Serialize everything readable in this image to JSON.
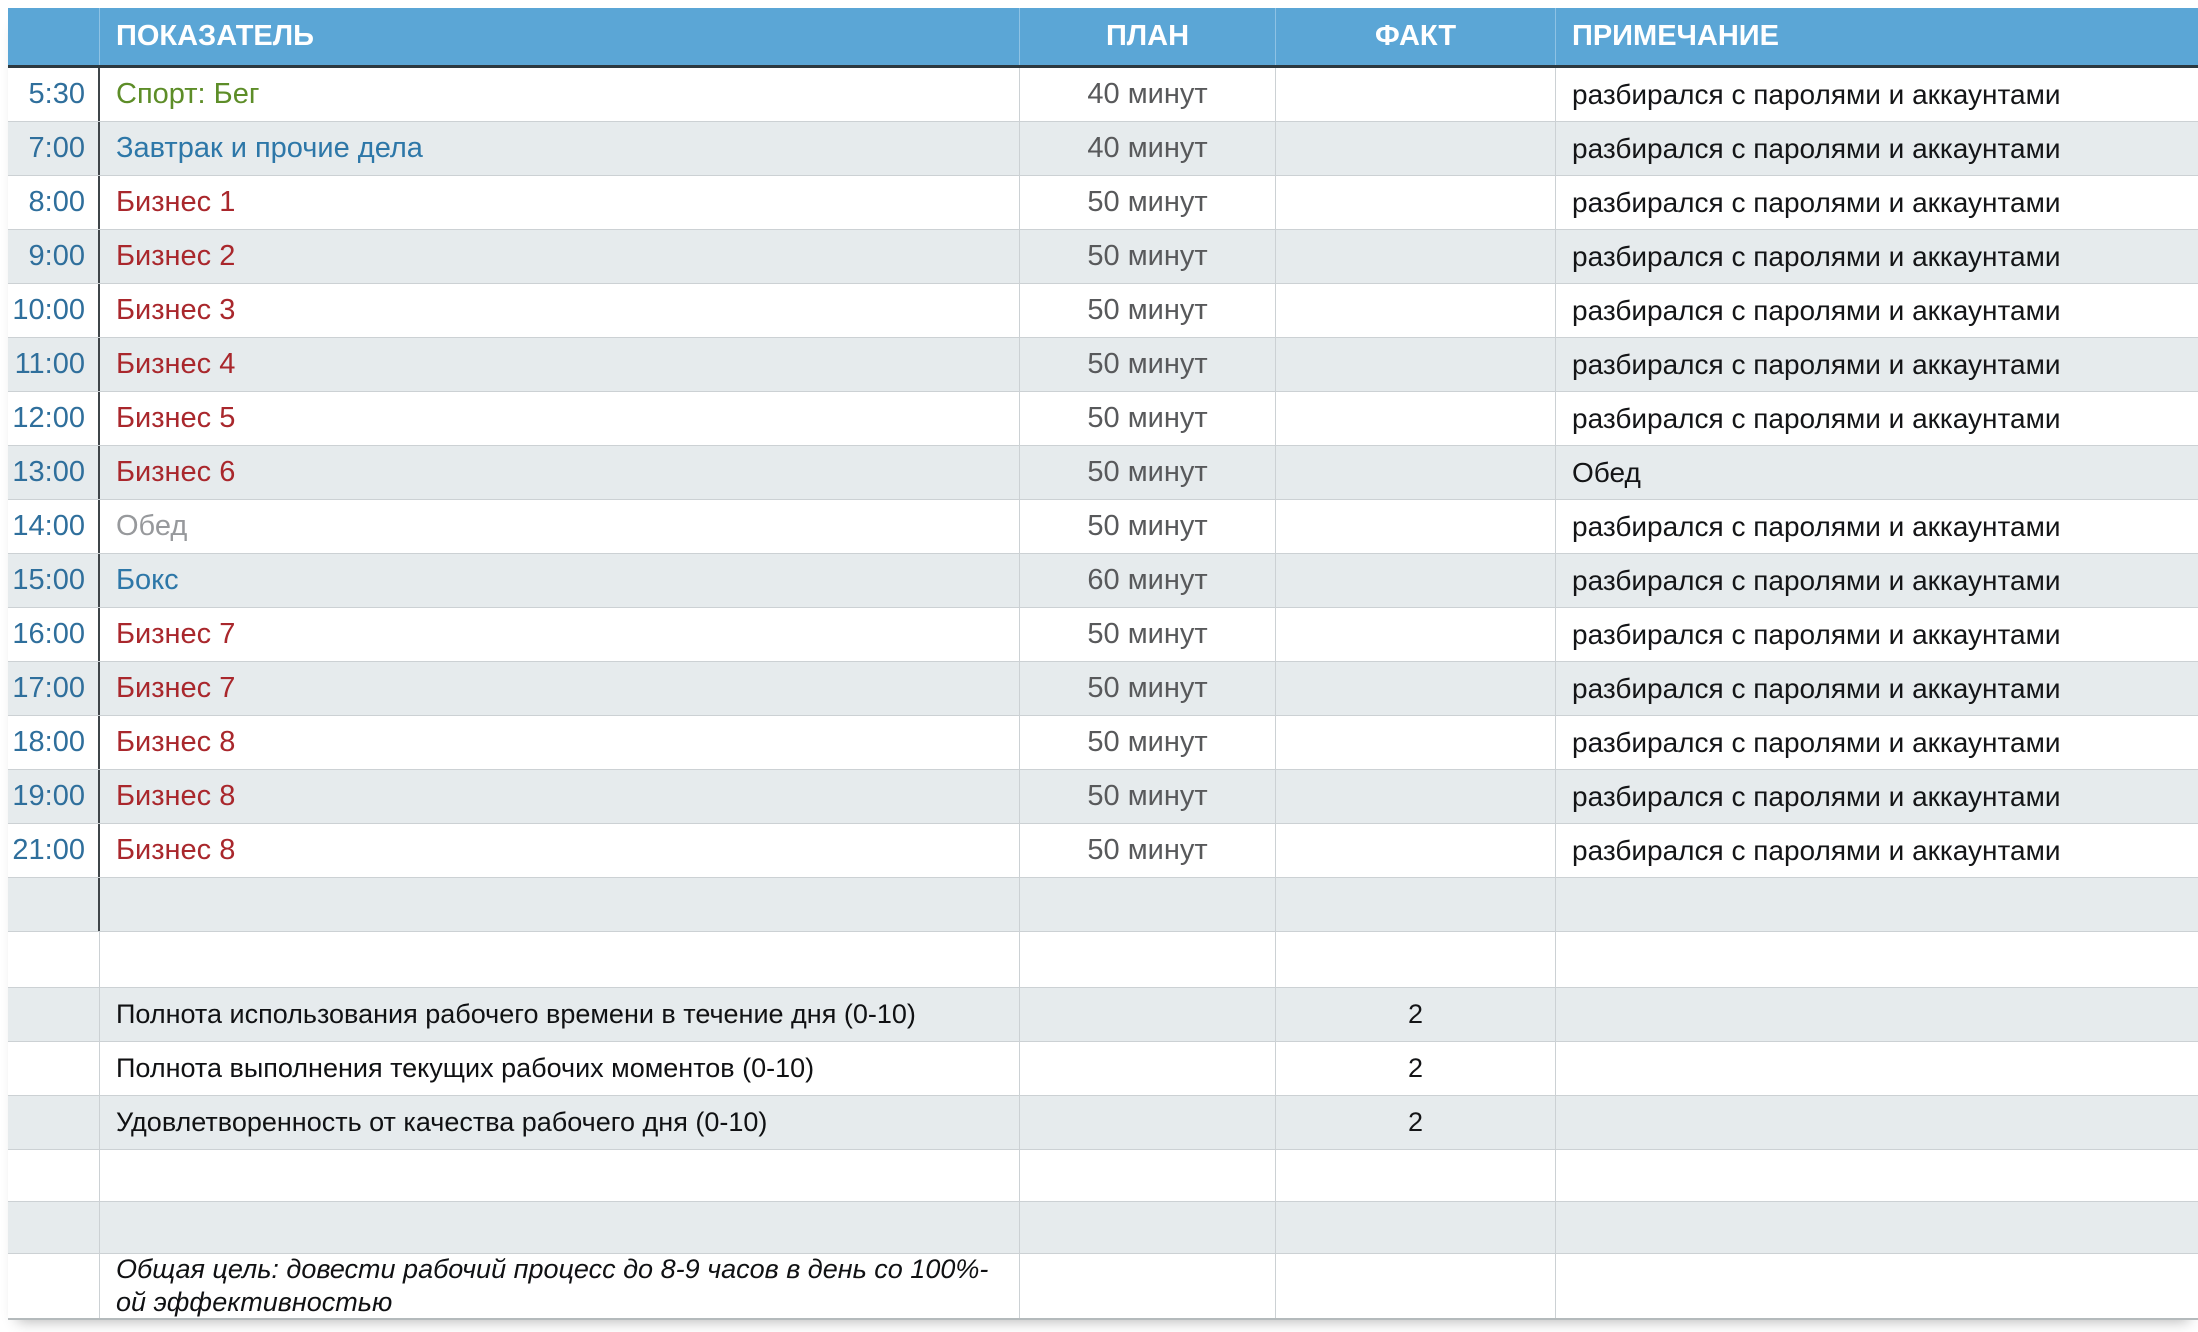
{
  "colors": {
    "header_bg": "#5ba6d6",
    "header_text": "#ffffff",
    "header_sep": "#8ec2e4",
    "header_underline": "#2c3940",
    "stripe": "#e6ebed",
    "grid_line": "#ccd1d4",
    "dark_divider": "#3f4549",
    "time_text": "#2f6f9c",
    "plan_text": "#58595b",
    "note_text": "#141517",
    "rating_text": "#101113",
    "sport_green": "#5d8d28",
    "activity_blue": "#2d77a8",
    "business_red": "#a9272c",
    "lunch_gray": "#97999c"
  },
  "table": {
    "headers": {
      "indicator": "ПОКАЗАТЕЛЬ",
      "plan": "ПЛАН",
      "fact": "ФАКТ",
      "note": "ПРИМЕЧАНИЕ"
    },
    "schedule_rows": [
      {
        "time": "5:30",
        "indicator": "Спорт: Бег",
        "color": "#5d8d28",
        "plan": "40 минут",
        "fact": "",
        "note": "разбирался с паролями и аккаунтами"
      },
      {
        "time": "7:00",
        "indicator": "Завтрак и прочие дела",
        "color": "#2d77a8",
        "plan": "40 минут",
        "fact": "",
        "note": "разбирался с паролями и аккаунтами"
      },
      {
        "time": "8:00",
        "indicator": "Бизнес 1",
        "color": "#a9272c",
        "plan": "50 минут",
        "fact": "",
        "note": "разбирался с паролями и аккаунтами"
      },
      {
        "time": "9:00",
        "indicator": "Бизнес 2",
        "color": "#a9272c",
        "plan": "50 минут",
        "fact": "",
        "note": "разбирался с паролями и аккаунтами"
      },
      {
        "time": "10:00",
        "indicator": "Бизнес 3",
        "color": "#a9272c",
        "plan": "50 минут",
        "fact": "",
        "note": "разбирался с паролями и аккаунтами"
      },
      {
        "time": "11:00",
        "indicator": "Бизнес 4",
        "color": "#a9272c",
        "plan": "50 минут",
        "fact": "",
        "note": "разбирался с паролями и аккаунтами"
      },
      {
        "time": "12:00",
        "indicator": "Бизнес 5",
        "color": "#a9272c",
        "plan": "50 минут",
        "fact": "",
        "note": "разбирался с паролями и аккаунтами"
      },
      {
        "time": "13:00",
        "indicator": "Бизнес 6",
        "color": "#a9272c",
        "plan": "50 минут",
        "fact": "",
        "note": "Обед"
      },
      {
        "time": "14:00",
        "indicator": "Обед",
        "color": "#97999c",
        "plan": "50 минут",
        "fact": "",
        "note": "разбирался с паролями и аккаунтами"
      },
      {
        "time": "15:00",
        "indicator": "Бокс",
        "color": "#2d77a8",
        "plan": "60 минут",
        "fact": "",
        "note": "разбирался с паролями и аккаунтами"
      },
      {
        "time": "16:00",
        "indicator": "Бизнес 7",
        "color": "#a9272c",
        "plan": "50 минут",
        "fact": "",
        "note": "разбирался с паролями и аккаунтами"
      },
      {
        "time": "17:00",
        "indicator": "Бизнес 7",
        "color": "#a9272c",
        "plan": "50 минут",
        "fact": "",
        "note": "разбирался с паролями и аккаунтами"
      },
      {
        "time": "18:00",
        "indicator": "Бизнес 8",
        "color": "#a9272c",
        "plan": "50 минут",
        "fact": "",
        "note": "разбирался с паролями и аккаунтами"
      },
      {
        "time": "19:00",
        "indicator": "Бизнес 8",
        "color": "#a9272c",
        "plan": "50 минут",
        "fact": "",
        "note": "разбирался с паролями и аккаунтами"
      },
      {
        "time": "21:00",
        "indicator": "Бизнес 8",
        "color": "#a9272c",
        "plan": "50 минут",
        "fact": "",
        "note": "разбирался с паролями и аккаунтами"
      }
    ],
    "rating_rows": [
      {
        "label": "Полнота использования рабочего времени в течение дня (0-10)",
        "fact": "2"
      },
      {
        "label": "Полнота выполнения текущих рабочих моментов (0-10)",
        "fact": "2"
      },
      {
        "label": "Удовлетворенность от качества рабочего дня (0-10)",
        "fact": "2"
      }
    ],
    "goal": "Общая цель: довести рабочий процесс до 8-9 часов в день со 100%-ой эффективностью"
  }
}
